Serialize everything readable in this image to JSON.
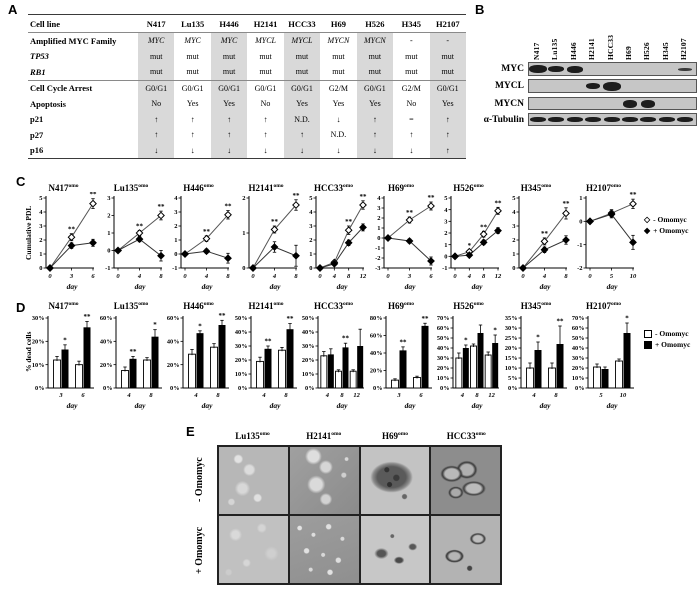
{
  "panels": {
    "A": {
      "label": "A",
      "table": {
        "corner": "Cell line",
        "columns": [
          "N417",
          "Lu135",
          "H446",
          "H2141",
          "HCC33",
          "H69",
          "H526",
          "H345",
          "H2107"
        ],
        "rows": [
          {
            "label": "Amplified MYC Family",
            "values_italic": true,
            "values": [
              "MYC",
              "MYC",
              "MYC",
              "MYCL",
              "MYCL",
              "MYCN",
              "MYCN",
              "-",
              "-"
            ]
          },
          {
            "label": "TP53",
            "label_italic": true,
            "values": [
              "mut",
              "mut",
              "mut",
              "mut",
              "mut",
              "mut",
              "mut",
              "mut",
              "mut"
            ]
          },
          {
            "label": "RB1",
            "label_italic": true,
            "separator": true,
            "values": [
              "mut",
              "mut",
              "mut",
              "mut",
              "mut",
              "mut",
              "mut",
              "mut",
              "mut"
            ]
          },
          {
            "label": "Cell Cycle Arrest",
            "values": [
              "G0/G1",
              "G0/G1",
              "G0/G1",
              "G0/G1",
              "G0/G1",
              "G2/M",
              "G0/G1",
              "G2/M",
              "G0/G1"
            ]
          },
          {
            "label": "Apoptosis",
            "values": [
              "No",
              "Yes",
              "Yes",
              "No",
              "Yes",
              "Yes",
              "Yes",
              "No",
              "Yes"
            ]
          },
          {
            "label": "p21",
            "values": [
              "↑",
              "↑",
              "↑",
              "↑",
              "N.D.",
              "↓",
              "↑",
              "=",
              "↑"
            ]
          },
          {
            "label": "p27",
            "values": [
              "↑",
              "↑",
              "↑",
              "↑",
              "↑",
              "N.D.",
              "↑",
              "↑",
              "↑"
            ]
          },
          {
            "label": "p16",
            "values": [
              "↓",
              "↓",
              "↓",
              "↓",
              "↓",
              "↓",
              "↓",
              "↓",
              "↑"
            ]
          }
        ]
      }
    },
    "B": {
      "label": "B",
      "lanes": [
        "N417",
        "Lu135",
        "H446",
        "H2141",
        "HCC33",
        "H69",
        "H526",
        "H345",
        "H2107"
      ],
      "rows": [
        {
          "label": "MYC",
          "bands": [
            {
              "lane": 0,
              "w": 18,
              "h": 8
            },
            {
              "lane": 1,
              "w": 16,
              "h": 6
            },
            {
              "lane": 2,
              "w": 16,
              "h": 7
            },
            {
              "lane": 8,
              "w": 14,
              "h": 3,
              "c": "#3a3a3a"
            }
          ]
        },
        {
          "label": "MYCL",
          "bands": [
            {
              "lane": 3,
              "w": 14,
              "h": 6
            },
            {
              "lane": 4,
              "w": 18,
              "h": 9
            }
          ]
        },
        {
          "label": "MYCN",
          "bands": [
            {
              "lane": 5,
              "w": 14,
              "h": 8
            },
            {
              "lane": 6,
              "w": 14,
              "h": 8
            }
          ]
        },
        {
          "label": "α-Tubulin",
          "bands": [
            {
              "lane": 0,
              "w": 16,
              "h": 5
            },
            {
              "lane": 1,
              "w": 16,
              "h": 5
            },
            {
              "lane": 2,
              "w": 16,
              "h": 5
            },
            {
              "lane": 3,
              "w": 16,
              "h": 5
            },
            {
              "lane": 4,
              "w": 16,
              "h": 5
            },
            {
              "lane": 5,
              "w": 16,
              "h": 5
            },
            {
              "lane": 6,
              "w": 16,
              "h": 5
            },
            {
              "lane": 7,
              "w": 16,
              "h": 5
            },
            {
              "lane": 8,
              "w": 16,
              "h": 5
            }
          ]
        }
      ]
    },
    "C": {
      "label": "C",
      "ylabel": "Cumulative PDL",
      "legend": {
        "open_glyph": "◇",
        "open_label": "- Omomyc",
        "filled_glyph": "◆",
        "filled_label": "+ Omomyc"
      }
    },
    "D": {
      "label": "D",
      "ylabel": "% dead cells",
      "legend": {
        "white_label": "- Omomyc",
        "black_label": "+ Omomyc"
      }
    },
    "E": {
      "label": "E",
      "columns": [
        {
          "name": "Lu135",
          "sup": "omo"
        },
        {
          "name": "H2141",
          "sup": "omo"
        },
        {
          "name": "H69",
          "sup": "omo"
        },
        {
          "name": "HCC33",
          "sup": "omo"
        }
      ],
      "rows": [
        "- Omomyc",
        "+ Omomyc"
      ]
    }
  },
  "chart_data": [
    {
      "panel": "C",
      "type": "line",
      "xlabel": "day",
      "ylabel": "Cumulative PDL",
      "series_labels": {
        "open": "- Omomyc",
        "filled": "+ Omomyc"
      },
      "charts": [
        {
          "title": "N417",
          "sup": "omo",
          "x": [
            0,
            3,
            6
          ],
          "ylim": [
            0,
            5
          ],
          "yticks": [
            0,
            1,
            2,
            3,
            4,
            5
          ],
          "open": [
            0,
            2.2,
            4.6
          ],
          "open_err": [
            0,
            0.25,
            0.35
          ],
          "filled": [
            0,
            1.6,
            1.8
          ],
          "filled_err": [
            0,
            0.2,
            0.25
          ],
          "sig": [
            "",
            "**",
            "**"
          ]
        },
        {
          "title": "Lu135",
          "sup": "omo",
          "x": [
            0,
            4,
            8
          ],
          "ylim": [
            -1,
            3
          ],
          "yticks": [
            -1,
            0,
            1,
            2,
            3
          ],
          "open": [
            0,
            1.0,
            2.0
          ],
          "open_err": [
            0,
            0.15,
            0.25
          ],
          "filled": [
            0,
            0.65,
            -0.3
          ],
          "filled_err": [
            0,
            0.15,
            0.3
          ],
          "sig": [
            "",
            "**",
            "**"
          ]
        },
        {
          "title": "H446",
          "sup": "omo",
          "x": [
            0,
            4,
            8
          ],
          "ylim": [
            -1,
            4
          ],
          "yticks": [
            -1,
            0,
            1,
            2,
            3,
            4
          ],
          "open": [
            0,
            1.1,
            2.8
          ],
          "open_err": [
            0,
            0.2,
            0.3
          ],
          "filled": [
            0,
            0.2,
            -0.3
          ],
          "filled_err": [
            0,
            0.15,
            0.35
          ],
          "sig": [
            "",
            "**",
            "**"
          ]
        },
        {
          "title": "H2141",
          "sup": "omo",
          "x": [
            0,
            4,
            8
          ],
          "ylim": [
            0,
            2
          ],
          "yticks": [
            0,
            1,
            2
          ],
          "open": [
            0,
            1.1,
            1.8
          ],
          "open_err": [
            0,
            0.1,
            0.15
          ],
          "filled": [
            0,
            0.6,
            0.35
          ],
          "filled_err": [
            0,
            0.15,
            0.3
          ],
          "sig": [
            "",
            "**",
            "**"
          ]
        },
        {
          "title": "HCC33",
          "sup": "omo",
          "x": [
            0,
            4,
            8,
            12
          ],
          "ylim": [
            0,
            5
          ],
          "yticks": [
            0,
            1,
            2,
            3,
            4,
            5
          ],
          "open": [
            0,
            0.4,
            2.7,
            4.5
          ],
          "open_err": [
            0,
            0.1,
            0.3,
            0.3
          ],
          "filled": [
            0,
            0.3,
            1.8,
            2.9
          ],
          "filled_err": [
            0,
            0.1,
            0.2,
            0.25
          ],
          "sig": [
            "",
            "",
            "**",
            "**"
          ]
        },
        {
          "title": "H69",
          "sup": "omo",
          "x": [
            0,
            3,
            6
          ],
          "ylim": [
            -3,
            4
          ],
          "yticks": [
            -3,
            -2,
            -1,
            0,
            1,
            2,
            3,
            4
          ],
          "open": [
            0,
            1.8,
            3.2
          ],
          "open_err": [
            0,
            0.3,
            0.4
          ],
          "filled": [
            0,
            -0.3,
            -2.3
          ],
          "filled_err": [
            0,
            0.2,
            0.4
          ],
          "sig": [
            "",
            "**",
            "**"
          ]
        },
        {
          "title": "H526",
          "sup": "omo",
          "x": [
            0,
            4,
            8,
            12
          ],
          "ylim": [
            -1,
            5
          ],
          "yticks": [
            -1,
            0,
            1,
            2,
            3,
            4,
            5
          ],
          "open": [
            0,
            0.4,
            1.9,
            3.9
          ],
          "open_err": [
            0,
            0.15,
            0.25,
            0.3
          ],
          "filled": [
            0,
            0.1,
            1.2,
            2.2
          ],
          "filled_err": [
            0,
            0.1,
            0.2,
            0.25
          ],
          "sig": [
            "",
            "*",
            "**",
            "**"
          ]
        },
        {
          "title": "H345",
          "sup": "omo",
          "x": [
            0,
            4,
            8
          ],
          "ylim": [
            0,
            5
          ],
          "yticks": [
            0,
            1,
            2,
            3,
            4,
            5
          ],
          "open": [
            0,
            1.9,
            3.9
          ],
          "open_err": [
            0,
            0.25,
            0.4
          ],
          "filled": [
            0,
            1.3,
            2.0
          ],
          "filled_err": [
            0,
            0.2,
            0.3
          ],
          "sig": [
            "",
            "**",
            "**"
          ]
        },
        {
          "title": "H2107",
          "sup": "omo",
          "x": [
            0,
            5,
            10
          ],
          "ylim": [
            -2,
            1
          ],
          "yticks": [
            -2,
            -1,
            0,
            1
          ],
          "open": [
            0,
            0.35,
            0.75
          ],
          "open_err": [
            0,
            0.15,
            0.2
          ],
          "filled": [
            0,
            0.3,
            -0.9
          ],
          "filled_err": [
            0,
            0.15,
            0.3
          ],
          "sig": [
            "",
            "",
            "**"
          ]
        }
      ]
    },
    {
      "panel": "D",
      "type": "bar",
      "xlabel": "day",
      "ylabel": "% dead cells",
      "series_labels": {
        "white": "- Omomyc",
        "black": "+ Omomyc"
      },
      "charts": [
        {
          "title": "N417",
          "sup": "omo",
          "days": [
            "3",
            "6"
          ],
          "ylim": [
            0,
            30
          ],
          "step": 10,
          "white": [
            12,
            10
          ],
          "white_err": [
            1.5,
            1.5
          ],
          "black": [
            16.5,
            26
          ],
          "black_err": [
            2,
            2.5
          ],
          "sig": [
            "*",
            "**"
          ]
        },
        {
          "title": "Lu135",
          "sup": "omo",
          "days": [
            "4",
            "8"
          ],
          "ylim": [
            0,
            60
          ],
          "step": 20,
          "white": [
            15,
            24
          ],
          "white_err": [
            3,
            2
          ],
          "black": [
            25,
            44
          ],
          "black_err": [
            2,
            6
          ],
          "sig": [
            "**",
            "*"
          ]
        },
        {
          "title": "H446",
          "sup": "omo",
          "days": [
            "4",
            "8"
          ],
          "ylim": [
            0,
            60
          ],
          "step": 20,
          "white": [
            29,
            35
          ],
          "white_err": [
            4,
            3
          ],
          "black": [
            47,
            54
          ],
          "black_err": [
            2,
            4
          ],
          "sig": [
            "*",
            "**"
          ]
        },
        {
          "title": "H2141",
          "sup": "omo",
          "days": [
            "4",
            "8"
          ],
          "ylim": [
            0,
            50
          ],
          "step": 10,
          "white": [
            19,
            27
          ],
          "white_err": [
            3,
            2
          ],
          "black": [
            28,
            42
          ],
          "black_err": [
            2,
            4
          ],
          "sig": [
            "**",
            "**"
          ]
        },
        {
          "title": "HCC33",
          "sup": "omo",
          "days": [
            "4",
            "8",
            "12"
          ],
          "ylim": [
            0,
            50
          ],
          "step": 10,
          "white": [
            23,
            12,
            12
          ],
          "white_err": [
            3,
            1,
            1
          ],
          "black": [
            24,
            29,
            30
          ],
          "black_err": [
            4,
            3,
            12
          ],
          "sig": [
            "",
            "**",
            ""
          ]
        },
        {
          "title": "H69",
          "sup": "omo",
          "days": [
            "3",
            "6"
          ],
          "ylim": [
            0,
            80
          ],
          "step": 20,
          "white": [
            9,
            12
          ],
          "white_err": [
            1.5,
            1.5
          ],
          "black": [
            43,
            71
          ],
          "black_err": [
            4,
            3
          ],
          "sig": [
            "**",
            "**"
          ]
        },
        {
          "title": "H526",
          "sup": "omo",
          "days": [
            "4",
            "8",
            "12"
          ],
          "ylim": [
            0,
            70
          ],
          "step": 10,
          "white": [
            30,
            42,
            33
          ],
          "white_err": [
            5,
            2,
            3
          ],
          "black": [
            40,
            55,
            45
          ],
          "black_err": [
            3,
            8,
            8
          ],
          "sig": [
            "*",
            "",
            "*"
          ]
        },
        {
          "title": "H345",
          "sup": "omo",
          "days": [
            "4",
            "8"
          ],
          "ylim": [
            0,
            35
          ],
          "step": 5,
          "white": [
            10,
            10
          ],
          "white_err": [
            2.5,
            2.5
          ],
          "black": [
            19,
            22
          ],
          "black_err": [
            4,
            9
          ],
          "sig": [
            "*",
            "**"
          ]
        },
        {
          "title": "H2107",
          "sup": "omo",
          "days": [
            "5",
            "10"
          ],
          "ylim": [
            0,
            70
          ],
          "step": 10,
          "white": [
            21,
            27
          ],
          "white_err": [
            3,
            2
          ],
          "black": [
            19,
            55
          ],
          "black_err": [
            2,
            10
          ],
          "sig": [
            "",
            "*"
          ]
        }
      ]
    }
  ]
}
